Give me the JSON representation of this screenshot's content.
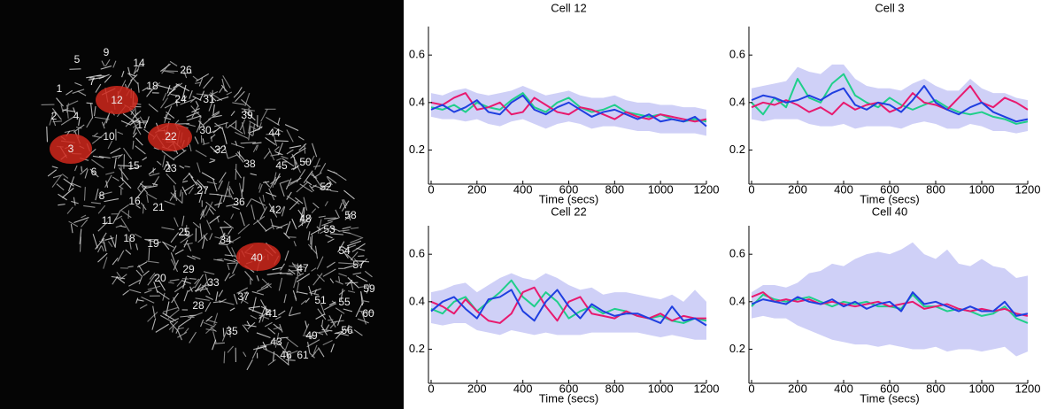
{
  "image": {
    "cell_labels": [
      "5",
      "9",
      "14",
      "26",
      "7",
      "18",
      "1",
      "12",
      "24",
      "31",
      "2",
      "4",
      "17",
      "22",
      "30",
      "39",
      "10",
      "44",
      "3",
      "32",
      "45",
      "50",
      "6",
      "15",
      "23",
      "38",
      "52",
      "8",
      "16",
      "27",
      "21",
      "36",
      "42",
      "48",
      "58",
      "11",
      "53",
      "25",
      "34",
      "18",
      "19",
      "40",
      "54",
      "57",
      "29",
      "47",
      "20",
      "33",
      "59",
      "37",
      "51",
      "55",
      "60",
      "28",
      "41",
      "35",
      "43",
      "49",
      "56",
      "46",
      "61"
    ]
  },
  "chart_data": [
    {
      "type": "line",
      "title": "Cell 12",
      "xlabel": "Time (secs)",
      "x": [
        0,
        50,
        100,
        150,
        200,
        250,
        300,
        350,
        400,
        450,
        500,
        550,
        600,
        650,
        700,
        750,
        800,
        850,
        900,
        950,
        1000,
        1050,
        1100,
        1150,
        1200
      ],
      "xlim": [
        0,
        1200
      ],
      "xticks": [
        0,
        200,
        400,
        600,
        800,
        1000,
        1200
      ],
      "ylim": [
        0.06,
        0.72
      ],
      "yticks": [
        0.2,
        0.4,
        0.6
      ],
      "band": {
        "color": "#cfd0f7",
        "upper": [
          0.44,
          0.43,
          0.45,
          0.46,
          0.44,
          0.43,
          0.44,
          0.45,
          0.47,
          0.45,
          0.43,
          0.44,
          0.45,
          0.43,
          0.42,
          0.42,
          0.43,
          0.41,
          0.4,
          0.4,
          0.39,
          0.39,
          0.38,
          0.38,
          0.37
        ],
        "lower": [
          0.34,
          0.33,
          0.33,
          0.32,
          0.33,
          0.31,
          0.3,
          0.32,
          0.33,
          0.31,
          0.29,
          0.31,
          0.32,
          0.31,
          0.29,
          0.3,
          0.3,
          0.29,
          0.28,
          0.28,
          0.27,
          0.27,
          0.27,
          0.27,
          0.26
        ]
      },
      "series": [
        {
          "color": "#1fcf8a",
          "values": [
            0.38,
            0.37,
            0.39,
            0.36,
            0.4,
            0.38,
            0.37,
            0.41,
            0.44,
            0.38,
            0.36,
            0.4,
            0.42,
            0.38,
            0.36,
            0.37,
            0.39,
            0.36,
            0.35,
            0.34,
            0.35,
            0.33,
            0.32,
            0.33,
            0.32
          ]
        },
        {
          "color": "#e8196e",
          "values": [
            0.4,
            0.39,
            0.42,
            0.44,
            0.37,
            0.38,
            0.4,
            0.35,
            0.36,
            0.42,
            0.39,
            0.36,
            0.35,
            0.38,
            0.37,
            0.35,
            0.33,
            0.36,
            0.34,
            0.33,
            0.35,
            0.34,
            0.33,
            0.32,
            0.33
          ]
        },
        {
          "color": "#1f3fe0",
          "values": [
            0.37,
            0.39,
            0.36,
            0.38,
            0.41,
            0.36,
            0.35,
            0.4,
            0.43,
            0.37,
            0.35,
            0.38,
            0.4,
            0.37,
            0.34,
            0.36,
            0.37,
            0.35,
            0.33,
            0.35,
            0.32,
            0.33,
            0.32,
            0.34,
            0.3
          ]
        }
      ]
    },
    {
      "type": "line",
      "title": "Cell 3",
      "xlabel": "Time (secs)",
      "x": [
        0,
        50,
        100,
        150,
        200,
        250,
        300,
        350,
        400,
        450,
        500,
        550,
        600,
        650,
        700,
        750,
        800,
        850,
        900,
        950,
        1000,
        1050,
        1100,
        1150,
        1200
      ],
      "xlim": [
        0,
        1200
      ],
      "xticks": [
        0,
        200,
        400,
        600,
        800,
        1000,
        1200
      ],
      "ylim": [
        0.06,
        0.72
      ],
      "yticks": [
        0.2,
        0.4,
        0.6
      ],
      "band": {
        "color": "#cfd0f7",
        "upper": [
          0.46,
          0.47,
          0.48,
          0.49,
          0.55,
          0.53,
          0.52,
          0.56,
          0.56,
          0.5,
          0.47,
          0.46,
          0.46,
          0.45,
          0.48,
          0.5,
          0.47,
          0.45,
          0.45,
          0.5,
          0.46,
          0.44,
          0.44,
          0.42,
          0.41
        ],
        "lower": [
          0.33,
          0.32,
          0.33,
          0.33,
          0.33,
          0.31,
          0.3,
          0.3,
          0.31,
          0.29,
          0.3,
          0.3,
          0.3,
          0.29,
          0.31,
          0.32,
          0.31,
          0.29,
          0.29,
          0.31,
          0.3,
          0.28,
          0.28,
          0.27,
          0.28
        ]
      },
      "series": [
        {
          "color": "#1fcf8a",
          "values": [
            0.4,
            0.35,
            0.42,
            0.38,
            0.5,
            0.42,
            0.4,
            0.48,
            0.52,
            0.43,
            0.4,
            0.38,
            0.42,
            0.39,
            0.37,
            0.39,
            0.41,
            0.38,
            0.36,
            0.35,
            0.36,
            0.34,
            0.33,
            0.31,
            0.32
          ]
        },
        {
          "color": "#e8196e",
          "values": [
            0.38,
            0.4,
            0.39,
            0.41,
            0.39,
            0.36,
            0.38,
            0.35,
            0.4,
            0.37,
            0.39,
            0.4,
            0.36,
            0.38,
            0.44,
            0.4,
            0.39,
            0.37,
            0.42,
            0.47,
            0.4,
            0.38,
            0.42,
            0.4,
            0.37
          ]
        },
        {
          "color": "#1f3fe0",
          "values": [
            0.41,
            0.43,
            0.42,
            0.4,
            0.41,
            0.43,
            0.41,
            0.44,
            0.46,
            0.39,
            0.37,
            0.4,
            0.39,
            0.36,
            0.41,
            0.47,
            0.4,
            0.37,
            0.35,
            0.38,
            0.4,
            0.36,
            0.34,
            0.32,
            0.33
          ]
        }
      ]
    },
    {
      "type": "line",
      "title": "Cell 22",
      "xlabel": "Time (secs)",
      "x": [
        0,
        50,
        100,
        150,
        200,
        250,
        300,
        350,
        400,
        450,
        500,
        550,
        600,
        650,
        700,
        750,
        800,
        850,
        900,
        950,
        1000,
        1050,
        1100,
        1150,
        1200
      ],
      "xlim": [
        0,
        1200
      ],
      "xticks": [
        0,
        200,
        400,
        600,
        800,
        1000,
        1200
      ],
      "ylim": [
        0.06,
        0.72
      ],
      "yticks": [
        0.2,
        0.4,
        0.6
      ],
      "band": {
        "color": "#cfd0f7",
        "upper": [
          0.44,
          0.45,
          0.47,
          0.48,
          0.44,
          0.47,
          0.5,
          0.52,
          0.5,
          0.49,
          0.52,
          0.5,
          0.47,
          0.45,
          0.46,
          0.43,
          0.44,
          0.44,
          0.43,
          0.42,
          0.41,
          0.43,
          0.4,
          0.45,
          0.4
        ],
        "lower": [
          0.31,
          0.3,
          0.31,
          0.31,
          0.28,
          0.27,
          0.26,
          0.28,
          0.27,
          0.26,
          0.27,
          0.26,
          0.26,
          0.26,
          0.27,
          0.27,
          0.27,
          0.27,
          0.27,
          0.26,
          0.25,
          0.26,
          0.25,
          0.24,
          0.24
        ]
      },
      "series": [
        {
          "color": "#1fcf8a",
          "values": [
            0.37,
            0.35,
            0.4,
            0.42,
            0.36,
            0.4,
            0.44,
            0.49,
            0.42,
            0.38,
            0.44,
            0.4,
            0.33,
            0.36,
            0.38,
            0.35,
            0.37,
            0.36,
            0.34,
            0.33,
            0.34,
            0.32,
            0.31,
            0.33,
            0.32
          ]
        },
        {
          "color": "#e8196e",
          "values": [
            0.4,
            0.38,
            0.35,
            0.41,
            0.36,
            0.32,
            0.31,
            0.35,
            0.44,
            0.46,
            0.38,
            0.32,
            0.4,
            0.42,
            0.35,
            0.34,
            0.33,
            0.36,
            0.34,
            0.33,
            0.35,
            0.32,
            0.34,
            0.33,
            0.33
          ]
        },
        {
          "color": "#1f3fe0",
          "values": [
            0.36,
            0.4,
            0.42,
            0.37,
            0.33,
            0.41,
            0.42,
            0.45,
            0.36,
            0.32,
            0.4,
            0.45,
            0.38,
            0.33,
            0.39,
            0.36,
            0.34,
            0.35,
            0.35,
            0.33,
            0.31,
            0.38,
            0.32,
            0.33,
            0.3
          ]
        }
      ]
    },
    {
      "type": "line",
      "title": "Cell 40",
      "xlabel": "Time (secs)",
      "x": [
        0,
        50,
        100,
        150,
        200,
        250,
        300,
        350,
        400,
        450,
        500,
        550,
        600,
        650,
        700,
        750,
        800,
        850,
        900,
        950,
        1000,
        1050,
        1100,
        1150,
        1200
      ],
      "xlim": [
        0,
        1200
      ],
      "xticks": [
        0,
        200,
        400,
        600,
        800,
        1000,
        1200
      ],
      "ylim": [
        0.06,
        0.72
      ],
      "yticks": [
        0.2,
        0.4,
        0.6
      ],
      "band": {
        "color": "#cfd0f7",
        "upper": [
          0.44,
          0.47,
          0.47,
          0.46,
          0.48,
          0.52,
          0.53,
          0.56,
          0.55,
          0.58,
          0.6,
          0.61,
          0.6,
          0.62,
          0.65,
          0.6,
          0.58,
          0.62,
          0.56,
          0.55,
          0.58,
          0.55,
          0.54,
          0.5,
          0.51
        ],
        "lower": [
          0.33,
          0.34,
          0.33,
          0.33,
          0.3,
          0.28,
          0.26,
          0.24,
          0.23,
          0.22,
          0.22,
          0.21,
          0.22,
          0.21,
          0.2,
          0.2,
          0.21,
          0.19,
          0.2,
          0.2,
          0.19,
          0.2,
          0.21,
          0.17,
          0.19
        ]
      },
      "series": [
        {
          "color": "#1fcf8a",
          "values": [
            0.38,
            0.43,
            0.41,
            0.4,
            0.41,
            0.42,
            0.4,
            0.38,
            0.4,
            0.39,
            0.4,
            0.38,
            0.38,
            0.37,
            0.43,
            0.38,
            0.38,
            0.36,
            0.37,
            0.36,
            0.34,
            0.35,
            0.38,
            0.33,
            0.31
          ]
        },
        {
          "color": "#e8196e",
          "values": [
            0.42,
            0.44,
            0.4,
            0.41,
            0.4,
            0.41,
            0.39,
            0.4,
            0.39,
            0.38,
            0.39,
            0.4,
            0.38,
            0.39,
            0.4,
            0.37,
            0.38,
            0.39,
            0.37,
            0.36,
            0.37,
            0.36,
            0.37,
            0.35,
            0.34
          ]
        },
        {
          "color": "#1f3fe0",
          "values": [
            0.39,
            0.41,
            0.4,
            0.39,
            0.42,
            0.4,
            0.39,
            0.41,
            0.38,
            0.4,
            0.37,
            0.39,
            0.4,
            0.36,
            0.44,
            0.39,
            0.4,
            0.38,
            0.36,
            0.38,
            0.36,
            0.36,
            0.4,
            0.34,
            0.35
          ]
        }
      ]
    }
  ]
}
